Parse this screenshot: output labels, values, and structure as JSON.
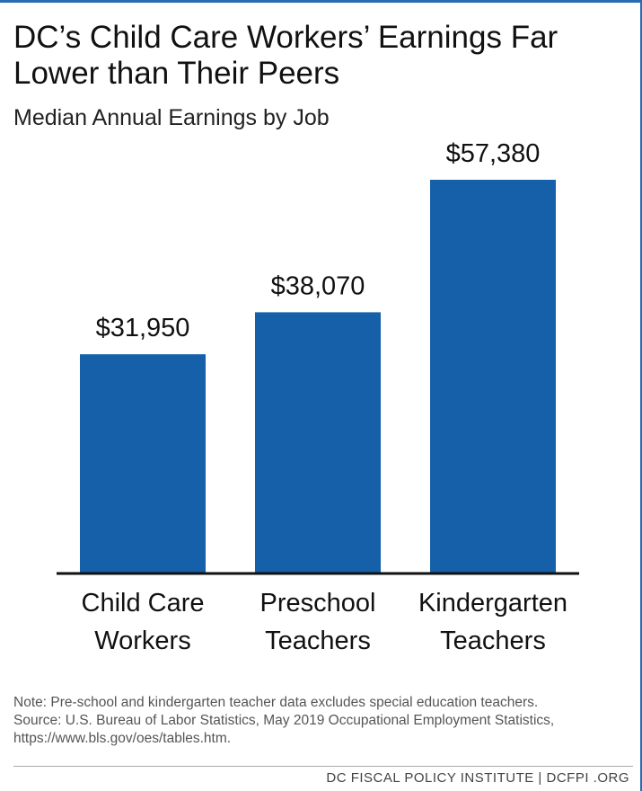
{
  "title_lines": [
    "DC’s Child Care Workers’ Earnings Far",
    "Lower than Their Peers"
  ],
  "subtitle": "Median Annual Earnings by Job",
  "colors": {
    "bar": "#1560a8",
    "accent": "#2a6cb1",
    "axis": "#111111"
  },
  "chart_data": {
    "type": "bar",
    "title": "DC’s Child Care Workers’ Earnings Far Lower than Their Peers",
    "subtitle": "Median Annual Earnings by Job",
    "categories": [
      [
        "Child Care",
        "Workers"
      ],
      [
        "Preschool",
        "Teachers"
      ],
      [
        "Kindergarten",
        "Teachers"
      ]
    ],
    "values": [
      31950,
      38070,
      57380
    ],
    "value_labels": [
      "$31,950",
      "$38,070",
      "$57,380"
    ],
    "ylim": [
      0,
      60000
    ],
    "grid": false,
    "legend": false
  },
  "notes": [
    "Note: Pre-school and kindergarten teacher data excludes special education teachers.",
    "Source: U.S. Bureau of Labor Statistics, May 2019 Occupational Employment Statistics,",
    "https://www.bls.gov/oes/tables.htm."
  ],
  "footer": "DC FISCAL POLICY INSTITUTE  |  DCFPI .ORG"
}
